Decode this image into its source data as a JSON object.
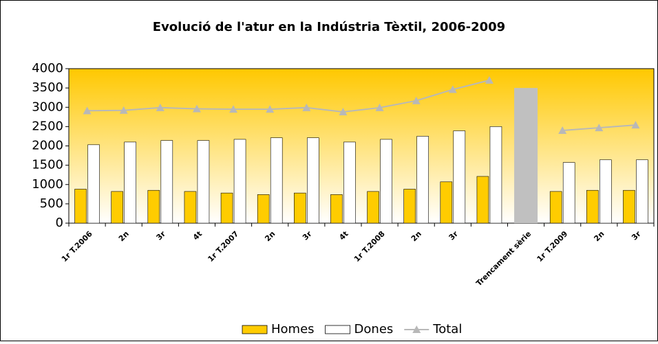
{
  "chart_data": {
    "type": "bar_line",
    "title": "Evolució de l'atur en la Indústria Tèxtil, 2006-2009",
    "categories": [
      "1r T.2006",
      "2n",
      "3r",
      "4t",
      "1r T.2007",
      "2n",
      "3r",
      "4t",
      "1r T.2008",
      "2n",
      "3r",
      null,
      "Trencament sèrie",
      "1r T.2009",
      "2n",
      "3r"
    ],
    "series": [
      {
        "name": "Homes",
        "kind": "bar",
        "color": "#ffcc00",
        "values": [
          880,
          820,
          850,
          820,
          780,
          740,
          780,
          740,
          820,
          880,
          1070,
          1210,
          null,
          820,
          850,
          850
        ]
      },
      {
        "name": "Dones",
        "kind": "bar",
        "color": "#ffffff",
        "values": [
          2030,
          2100,
          2140,
          2140,
          2170,
          2210,
          2210,
          2100,
          2170,
          2250,
          2390,
          2500,
          null,
          1570,
          1640,
          1640
        ]
      },
      {
        "name": "Total",
        "kind": "line",
        "color": "#b8b8b8",
        "values": [
          2910,
          2920,
          2990,
          2960,
          2950,
          2950,
          2990,
          2880,
          2990,
          3170,
          3460,
          3700,
          null,
          2400,
          2470,
          2540
        ]
      }
    ],
    "break_bar": {
      "color": "#c0c0c0",
      "values": [
        null,
        null,
        null,
        null,
        null,
        null,
        null,
        null,
        null,
        null,
        null,
        null,
        3500,
        null,
        null,
        null
      ]
    },
    "ylim": [
      0,
      4000
    ],
    "yticks": [
      0,
      500,
      1000,
      1500,
      2000,
      2500,
      3000,
      3500,
      4000
    ],
    "legend": "bottom"
  }
}
